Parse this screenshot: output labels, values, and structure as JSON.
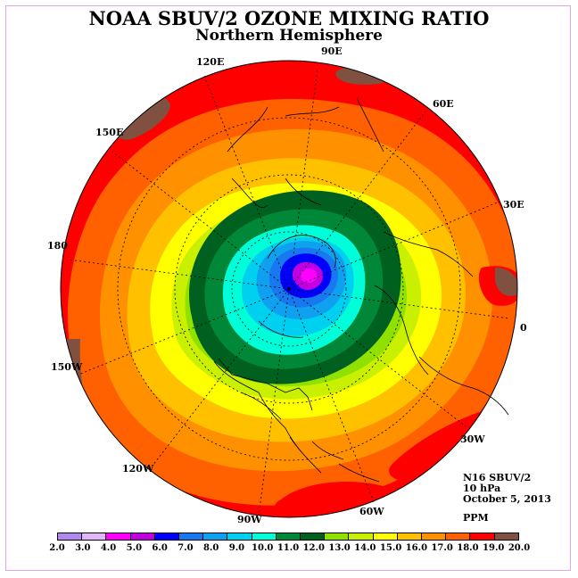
{
  "title": "NOAA SBUV/2 OZONE MIXING RATIO",
  "subtitle": "Northern Hemisphere",
  "info": {
    "instrument": "N16 SBUV/2",
    "level": "10 hPa",
    "date": "October 5, 2013",
    "units": "PPM"
  },
  "longitude_labels": [
    {
      "text": "90E",
      "lon": 90
    },
    {
      "text": "60E",
      "lon": 60
    },
    {
      "text": "30E",
      "lon": 30
    },
    {
      "text": "0",
      "lon": 0
    },
    {
      "text": "30W",
      "lon": -30
    },
    {
      "text": "60W",
      "lon": -60
    },
    {
      "text": "90W",
      "lon": -90
    },
    {
      "text": "120W",
      "lon": -120
    },
    {
      "text": "150W",
      "lon": -150
    },
    {
      "text": "180",
      "lon": 180
    },
    {
      "text": "150E",
      "lon": 150
    },
    {
      "text": "120E",
      "lon": 120
    }
  ],
  "colorbar": {
    "ticks": [
      "2.0",
      "3.0",
      "4.0",
      "5.0",
      "6.0",
      "7.0",
      "8.0",
      "9.0",
      "10.0",
      "11.0",
      "12.0",
      "13.0",
      "14.0",
      "15.0",
      "16.0",
      "17.0",
      "18.0",
      "19.0",
      "20.0"
    ],
    "colors": [
      "#b088f0",
      "#e0b8f8",
      "#ff00ff",
      "#c000e0",
      "#0000ff",
      "#1878f0",
      "#10a0f0",
      "#00d0f0",
      "#00ffd8",
      "#008838",
      "#006020",
      "#90e000",
      "#c8f000",
      "#ffff00",
      "#ffc000",
      "#ff9000",
      "#ff6000",
      "#ff0000",
      "#805040"
    ]
  },
  "map": {
    "polar_center": {
      "lat": 90,
      "lon": 0
    },
    "value_at_pole_region_ppm": 5.0,
    "value_at_edge_ppm": 19.0,
    "high_patches_ppm": 20.0
  }
}
